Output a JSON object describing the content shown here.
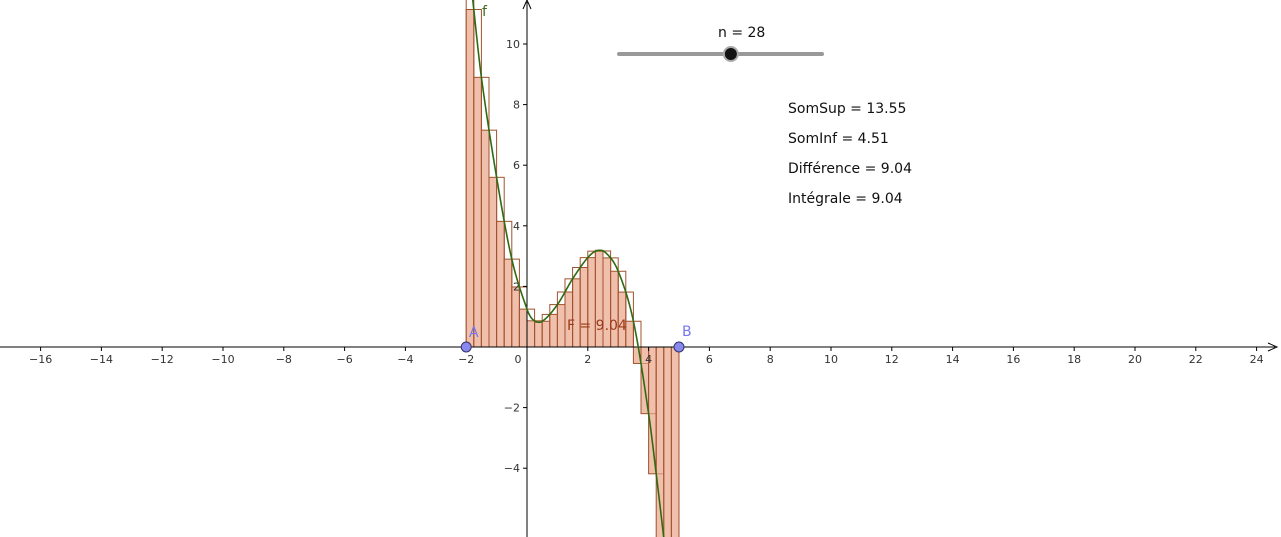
{
  "slider": {
    "label": "n = 28",
    "value": 28,
    "min": 1,
    "max": 50
  },
  "stats": {
    "somsup": "SomSup = 13.55",
    "sominf": "SomInf = 4.51",
    "difference": "Différence = 9.04",
    "integrale": "Intégrale = 9.04"
  },
  "labels": {
    "function": "f",
    "point_a": "A",
    "point_b": "B",
    "area": "F = 9.04"
  },
  "colors": {
    "curve": "#2e6a12",
    "bar_fill": "#e9a58a",
    "bar_stroke": "#a0522d",
    "point": "#8888ee",
    "axis": "#000000"
  },
  "chart_data": {
    "type": "line",
    "function_name": "f",
    "x_range": [
      -17,
      25
    ],
    "y_range": [
      -6,
      11.3
    ],
    "x_ticks": [
      -16,
      -14,
      -12,
      -10,
      -8,
      -6,
      -4,
      -2,
      0,
      2,
      4,
      6,
      8,
      10,
      12,
      14,
      16,
      18,
      20,
      22,
      24
    ],
    "y_ticks": [
      -4,
      -2,
      2,
      4,
      6,
      8,
      10
    ],
    "interval": {
      "a": -2,
      "b": 5
    },
    "n": 28,
    "somsup": 13.55,
    "sominf": 4.51,
    "difference": 9.04,
    "integrale": 9.04,
    "curve_samples": [
      [
        -1.8,
        11.6
      ],
      [
        -1.5,
        8.9
      ],
      [
        -1.0,
        5.6
      ],
      [
        -0.5,
        2.9
      ],
      [
        0,
        1.25
      ],
      [
        0.2,
        0.9
      ],
      [
        0.5,
        0.85
      ],
      [
        1.0,
        1.4
      ],
      [
        1.5,
        2.25
      ],
      [
        2.0,
        2.95
      ],
      [
        2.3,
        3.18
      ],
      [
        2.6,
        3.1
      ],
      [
        3.0,
        2.5
      ],
      [
        3.5,
        0.85
      ],
      [
        4.0,
        -2.2
      ],
      [
        4.3,
        -4.6
      ],
      [
        4.5,
        -6.3
      ]
    ]
  }
}
